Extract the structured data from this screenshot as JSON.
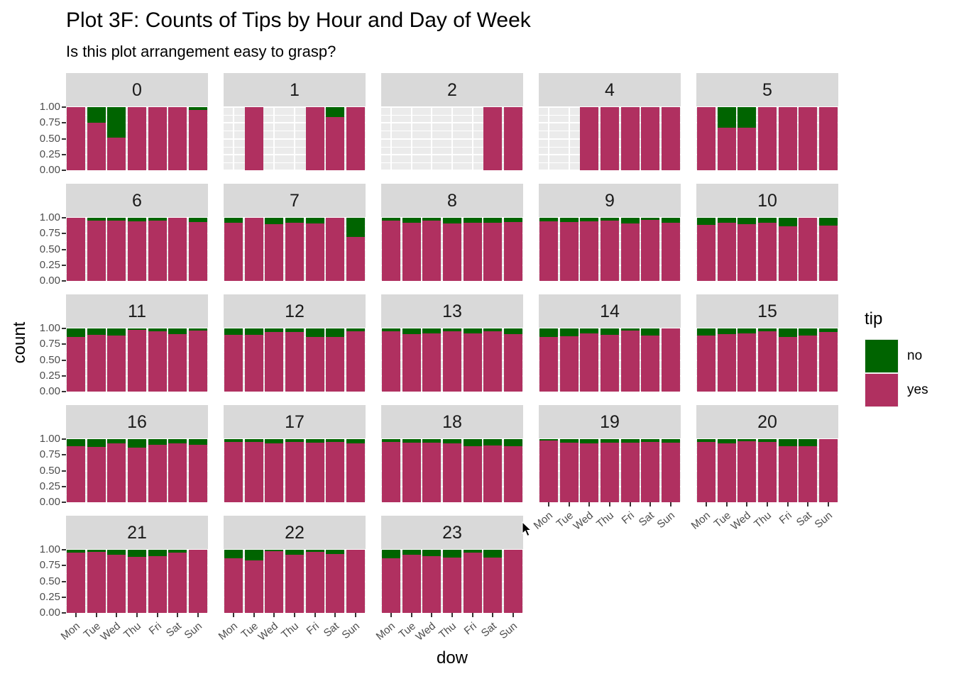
{
  "title": "Plot 3F: Counts of Tips by Hour and Day of Week",
  "subtitle": "Is this plot arrangement easy to grasp?",
  "axes": {
    "y_label": "count",
    "x_label": "dow",
    "y_ticks": [
      "1.00",
      "0.75",
      "0.50",
      "0.25",
      "0.00"
    ],
    "x_ticks": [
      "Mon",
      "Tue",
      "Wed",
      "Thu",
      "Fri",
      "Sat",
      "Sun"
    ]
  },
  "legend": {
    "title": "tip",
    "items": [
      {
        "label": "no",
        "color": "#006400"
      },
      {
        "label": "yes",
        "color": "#B03060"
      }
    ]
  },
  "colors": {
    "yes": "#B03060",
    "no": "#006400",
    "panel_bg": "#EBEBEB",
    "strip_bg": "#D9D9D9",
    "grid": "#FFFFFF",
    "tick": "#333333",
    "tick_label": "#4d4d4d"
  },
  "chart_data": {
    "type": "bar",
    "stacked": true,
    "normalized_fill": true,
    "facet_by": "hour (hour 3 absent)",
    "title": "Plot 3F: Counts of Tips by Hour and Day of Week",
    "subtitle": "Is this plot arrangement easy to grasp?",
    "xlabel": "dow",
    "ylabel": "count",
    "ylim": [
      0,
      1
    ],
    "legend_position": "right",
    "grid": true,
    "categories": [
      "Mon",
      "Tue",
      "Wed",
      "Thu",
      "Fri",
      "Sat",
      "Sun"
    ],
    "series_names": [
      "yes",
      "no"
    ],
    "note": "yes_fraction is the maroon 'yes' share of each filled bar; green 'no' = 1 - yes; null = no bar for that day/hour",
    "facet_grid": [
      [
        "0",
        "1",
        "2",
        "4",
        "5"
      ],
      [
        "6",
        "7",
        "8",
        "9",
        "10"
      ],
      [
        "11",
        "12",
        "13",
        "14",
        "15"
      ],
      [
        "16",
        "17",
        "18",
        "19",
        "20"
      ],
      [
        "21",
        "22",
        "23"
      ]
    ],
    "facets": [
      {
        "hour": "0",
        "y_axis": true,
        "x_axis": false,
        "yes_fraction": [
          1,
          0.75,
          0.52,
          1,
          1,
          1,
          0.95
        ]
      },
      {
        "hour": "1",
        "y_axis": false,
        "x_axis": false,
        "yes_fraction": [
          null,
          1,
          null,
          null,
          1,
          0.84,
          1
        ]
      },
      {
        "hour": "2",
        "y_axis": false,
        "x_axis": false,
        "yes_fraction": [
          null,
          null,
          null,
          null,
          null,
          1,
          1
        ]
      },
      {
        "hour": "4",
        "y_axis": false,
        "x_axis": false,
        "yes_fraction": [
          null,
          null,
          1,
          1,
          1,
          1,
          1
        ]
      },
      {
        "hour": "5",
        "y_axis": false,
        "x_axis": false,
        "yes_fraction": [
          1,
          0.67,
          0.67,
          1,
          1,
          1,
          1
        ]
      },
      {
        "hour": "6",
        "y_axis": true,
        "x_axis": false,
        "yes_fraction": [
          1,
          0.95,
          0.96,
          0.94,
          0.95,
          1,
          0.93
        ]
      },
      {
        "hour": "7",
        "y_axis": false,
        "x_axis": false,
        "yes_fraction": [
          0.92,
          1,
          0.9,
          0.92,
          0.91,
          1,
          0.7
        ]
      },
      {
        "hour": "8",
        "y_axis": false,
        "x_axis": false,
        "yes_fraction": [
          0.96,
          0.92,
          0.95,
          0.91,
          0.92,
          0.92,
          0.93
        ]
      },
      {
        "hour": "9",
        "y_axis": false,
        "x_axis": false,
        "yes_fraction": [
          0.94,
          0.93,
          0.94,
          0.96,
          0.91,
          0.97,
          0.92
        ]
      },
      {
        "hour": "10",
        "y_axis": false,
        "x_axis": false,
        "yes_fraction": [
          0.89,
          0.92,
          0.9,
          0.92,
          0.87,
          1,
          0.88
        ]
      },
      {
        "hour": "11",
        "y_axis": true,
        "x_axis": false,
        "yes_fraction": [
          0.87,
          0.9,
          0.89,
          0.98,
          0.95,
          0.91,
          0.97
        ]
      },
      {
        "hour": "12",
        "y_axis": false,
        "x_axis": false,
        "yes_fraction": [
          0.9,
          0.9,
          0.94,
          0.94,
          0.87,
          0.87,
          0.95
        ]
      },
      {
        "hour": "13",
        "y_axis": false,
        "x_axis": false,
        "yes_fraction": [
          0.96,
          0.91,
          0.92,
          0.96,
          0.92,
          0.95,
          0.91
        ]
      },
      {
        "hour": "14",
        "y_axis": false,
        "x_axis": false,
        "yes_fraction": [
          0.86,
          0.88,
          0.92,
          0.9,
          0.97,
          0.89,
          1
        ]
      },
      {
        "hour": "15",
        "y_axis": false,
        "x_axis": false,
        "yes_fraction": [
          0.89,
          0.91,
          0.92,
          0.95,
          0.86,
          0.89,
          0.94
        ]
      },
      {
        "hour": "16",
        "y_axis": true,
        "x_axis": false,
        "yes_fraction": [
          0.89,
          0.88,
          0.93,
          0.87,
          0.91,
          0.93,
          0.91
        ]
      },
      {
        "hour": "17",
        "y_axis": false,
        "x_axis": false,
        "yes_fraction": [
          0.96,
          0.95,
          0.93,
          0.95,
          0.94,
          0.96,
          0.93
        ]
      },
      {
        "hour": "18",
        "y_axis": false,
        "x_axis": false,
        "yes_fraction": [
          0.95,
          0.94,
          0.94,
          0.93,
          0.89,
          0.9,
          0.89
        ]
      },
      {
        "hour": "19",
        "y_axis": false,
        "x_axis": true,
        "yes_fraction": [
          0.98,
          0.94,
          0.93,
          0.94,
          0.94,
          0.95,
          0.94
        ]
      },
      {
        "hour": "20",
        "y_axis": false,
        "x_axis": true,
        "yes_fraction": [
          0.96,
          0.93,
          0.97,
          0.96,
          0.89,
          0.89,
          1
        ]
      },
      {
        "hour": "21",
        "y_axis": true,
        "x_axis": true,
        "yes_fraction": [
          0.95,
          0.97,
          0.92,
          0.89,
          0.9,
          0.95,
          1
        ]
      },
      {
        "hour": "22",
        "y_axis": false,
        "x_axis": true,
        "yes_fraction": [
          0.86,
          0.83,
          0.98,
          0.92,
          0.97,
          0.93,
          1
        ]
      },
      {
        "hour": "23",
        "y_axis": false,
        "x_axis": true,
        "yes_fraction": [
          0.86,
          0.92,
          0.9,
          0.88,
          0.95,
          0.88,
          1
        ]
      }
    ]
  }
}
